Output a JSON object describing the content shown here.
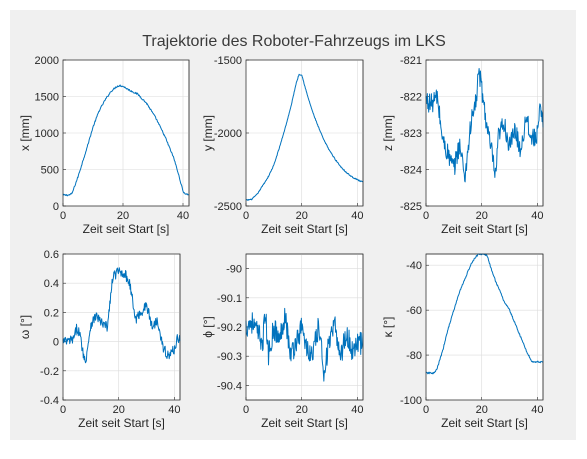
{
  "figure": {
    "title": "Trajektorie des Roboter-Fahrzeugs im LKS",
    "background": "#f0f0f0",
    "line_color": "#0072BD"
  },
  "chart_data": [
    {
      "type": "line",
      "ylabel": "x [mm]",
      "xlabel": "Zeit seit Start [s]",
      "xlim": [
        0,
        42
      ],
      "xticks": [
        0,
        20,
        40
      ],
      "ylim": [
        0,
        2000
      ],
      "yticks": [
        0,
        500,
        1000,
        1500,
        2000
      ],
      "grid": true,
      "series": [
        {
          "x": [
            0,
            2,
            3,
            5,
            8,
            10,
            12,
            14,
            16,
            18,
            19,
            20,
            22,
            25,
            28,
            31,
            34,
            37,
            39,
            40,
            41,
            42
          ],
          "y": [
            150,
            150,
            170,
            400,
            800,
            1080,
            1300,
            1450,
            1570,
            1640,
            1650,
            1640,
            1590,
            1530,
            1400,
            1200,
            950,
            650,
            360,
            200,
            160,
            160
          ],
          "noise": 12
        }
      ]
    },
    {
      "type": "line",
      "ylabel": "y [mm]",
      "xlabel": "Zeit seit Start [s]",
      "xlim": [
        0,
        42
      ],
      "xticks": [
        0,
        20,
        40
      ],
      "ylim": [
        -2500,
        -1500
      ],
      "yticks": [
        -2500,
        -2000,
        -1500
      ],
      "grid": true,
      "series": [
        {
          "x": [
            0,
            2,
            4,
            6,
            8,
            10,
            12,
            14,
            16,
            18,
            19,
            20,
            22,
            24,
            26,
            28,
            30,
            32,
            34,
            36,
            38,
            40,
            41,
            42
          ],
          "y": [
            -2460,
            -2455,
            -2420,
            -2360,
            -2300,
            -2220,
            -2100,
            -1970,
            -1830,
            -1660,
            -1600,
            -1600,
            -1740,
            -1860,
            -1960,
            -2050,
            -2120,
            -2180,
            -2230,
            -2270,
            -2300,
            -2320,
            -2330,
            -2330
          ],
          "noise": 4
        }
      ]
    },
    {
      "type": "line",
      "ylabel": "z [mm]",
      "xlabel": "Zeit seit Start [s]",
      "xlim": [
        0,
        42
      ],
      "xticks": [
        0,
        20,
        40
      ],
      "ylim": [
        -825,
        -821
      ],
      "yticks": [
        -825,
        -824,
        -823,
        -822,
        -821
      ],
      "grid": true,
      "series": [
        {
          "x": [
            0,
            2,
            4,
            6,
            8,
            10,
            12,
            14,
            16,
            18,
            19,
            20,
            22,
            24,
            25,
            26,
            28,
            30,
            32,
            34,
            36,
            38,
            40,
            41,
            42
          ],
          "y": [
            -822.1,
            -822.2,
            -822.0,
            -823.2,
            -823.6,
            -824.0,
            -823.3,
            -824.2,
            -822.8,
            -822.1,
            -821.3,
            -821.8,
            -822.9,
            -823.7,
            -824.3,
            -823.1,
            -822.7,
            -823.4,
            -822.9,
            -823.5,
            -822.5,
            -823.2,
            -823.0,
            -822.4,
            -822.7
          ],
          "noise": 0.28
        }
      ]
    },
    {
      "type": "line",
      "ylabel": "ω [°]",
      "xlabel": "Zeit seit Start [s]",
      "xlim": [
        0,
        42
      ],
      "xticks": [
        0,
        20,
        40
      ],
      "ylim": [
        -0.4,
        0.6
      ],
      "yticks": [
        -0.4,
        -0.2,
        0,
        0.2,
        0.4,
        0.6
      ],
      "grid": true,
      "series": [
        {
          "x": [
            0,
            2,
            4,
            5,
            6,
            8,
            10,
            12,
            14,
            16,
            17,
            18,
            20,
            22,
            24,
            26,
            28,
            30,
            32,
            34,
            36,
            38,
            40,
            41,
            42
          ],
          "y": [
            0.0,
            0.0,
            0.02,
            0.1,
            0.05,
            -0.15,
            0.12,
            0.18,
            0.12,
            0.1,
            0.3,
            0.45,
            0.48,
            0.47,
            0.4,
            0.15,
            0.2,
            0.25,
            0.1,
            0.15,
            -0.05,
            -0.1,
            -0.05,
            0.02,
            0.03
          ],
          "noise": 0.035
        }
      ]
    },
    {
      "type": "line",
      "ylabel": "ϕ [°]",
      "xlabel": "Zeit seit Start [s]",
      "xlim": [
        0,
        42
      ],
      "xticks": [
        0,
        20,
        40
      ],
      "ylim": [
        -90.45,
        -89.95
      ],
      "yticks": [
        -90.4,
        -90.3,
        -90.2,
        -90.1,
        -90
      ],
      "grid": true,
      "series": [
        {
          "x": [
            0,
            2,
            4,
            6,
            7,
            8,
            10,
            12,
            14,
            16,
            18,
            20,
            22,
            24,
            26,
            28,
            30,
            32,
            34,
            36,
            38,
            40,
            42
          ],
          "y": [
            -90.2,
            -90.18,
            -90.22,
            -90.25,
            -90.15,
            -90.3,
            -90.2,
            -90.25,
            -90.15,
            -90.3,
            -90.25,
            -90.2,
            -90.28,
            -90.3,
            -90.2,
            -90.35,
            -90.25,
            -90.2,
            -90.3,
            -90.22,
            -90.28,
            -90.25,
            -90.26
          ],
          "noise": 0.04
        }
      ]
    },
    {
      "type": "line",
      "ylabel": "κ [°]",
      "xlabel": "Zeit seit Start [s]",
      "xlim": [
        0,
        42
      ],
      "xticks": [
        0,
        20,
        40
      ],
      "ylim": [
        -100,
        -35
      ],
      "yticks": [
        -100,
        -80,
        -60,
        -40
      ],
      "grid": true,
      "series": [
        {
          "x": [
            0,
            1,
            2,
            3,
            4,
            6,
            8,
            10,
            12,
            14,
            16,
            18,
            19,
            21,
            22,
            24,
            26,
            28,
            30,
            32,
            34,
            36,
            38,
            40,
            41,
            42
          ],
          "y": [
            -88,
            -88,
            -88,
            -88,
            -86,
            -78,
            -68,
            -60,
            -52,
            -46,
            -40,
            -36,
            -35,
            -35,
            -36,
            -44,
            -50,
            -56,
            -60,
            -66,
            -72,
            -78,
            -83,
            -83,
            -83,
            -83
          ],
          "noise": 0.4
        }
      ]
    }
  ]
}
